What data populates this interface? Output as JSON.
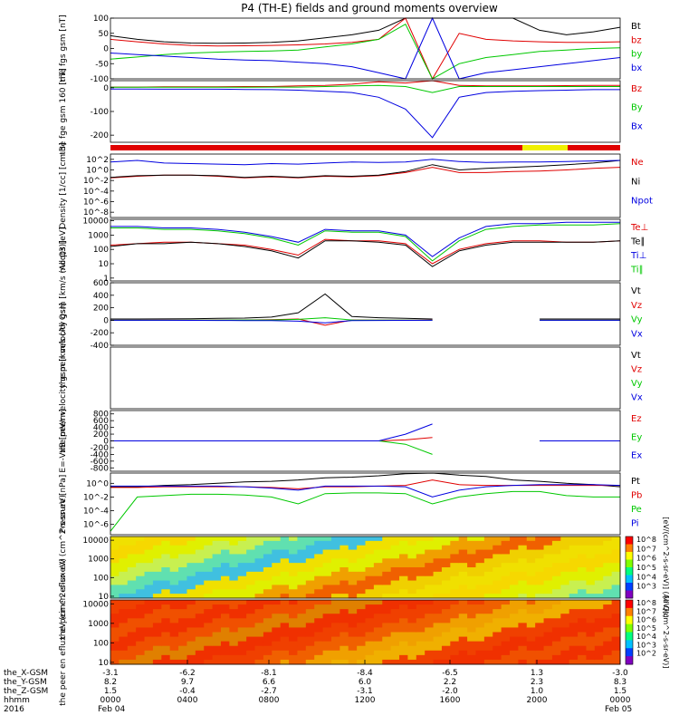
{
  "title": "P4 (TH-E) fields and ground moments overview",
  "colors": {
    "black": "#000000",
    "red": "#e00000",
    "green": "#00c800",
    "blue": "#0000e0",
    "yellow": "#f0f000"
  },
  "chart_data": [
    {
      "type": "line",
      "ylabel": "the fgs gsm [nT]",
      "yticks": [
        "100",
        "50",
        "0",
        "-50",
        "-100"
      ],
      "series": [
        {
          "name": "Bt",
          "color": "black",
          "values": [
            42,
            30,
            22,
            18,
            17,
            18,
            20,
            25,
            35,
            45,
            60,
            100,
            100,
            100,
            100,
            100,
            60,
            45,
            55,
            70
          ]
        },
        {
          "name": "bz",
          "color": "red",
          "values": [
            30,
            22,
            15,
            10,
            8,
            9,
            10,
            12,
            15,
            20,
            30,
            100,
            -100,
            50,
            30,
            25,
            22,
            20,
            20,
            22
          ]
        },
        {
          "name": "by",
          "color": "green",
          "values": [
            -35,
            -28,
            -20,
            -15,
            -12,
            -10,
            -8,
            -5,
            5,
            15,
            30,
            80,
            -100,
            -50,
            -30,
            -20,
            -10,
            -5,
            0,
            2
          ]
        },
        {
          "name": "bx",
          "color": "blue",
          "values": [
            -15,
            -20,
            -25,
            -30,
            -35,
            -38,
            -40,
            -45,
            -50,
            -60,
            -80,
            -100,
            100,
            -100,
            -80,
            -70,
            -60,
            -50,
            -40,
            -30
          ]
        }
      ]
    },
    {
      "type": "line",
      "ylabel": "the fge gsm 160 [nT]",
      "yticks": [
        "0",
        "-100",
        "-200"
      ],
      "series": [
        {
          "name": "Bz",
          "color": "red",
          "values": [
            3,
            3,
            4,
            4,
            4,
            5,
            5,
            8,
            10,
            15,
            25,
            20,
            30,
            10,
            8,
            8,
            8,
            9,
            10,
            10
          ]
        },
        {
          "name": "By",
          "color": "green",
          "values": [
            2,
            2,
            2,
            2,
            2,
            2,
            3,
            3,
            5,
            8,
            10,
            5,
            -20,
            5,
            5,
            5,
            5,
            5,
            5,
            5
          ]
        },
        {
          "name": "Bx",
          "color": "blue",
          "values": [
            -5,
            -5,
            -6,
            -6,
            -6,
            -7,
            -8,
            -10,
            -15,
            -20,
            -40,
            -90,
            -210,
            -40,
            -20,
            -15,
            -12,
            -10,
            -8,
            -8
          ]
        }
      ]
    },
    {
      "type": "line",
      "ylabel": "Density [1/cc] [cm-3]",
      "yscale": "log",
      "yticks": [
        "10^2",
        "10^0",
        "10^-2",
        "10^-4",
        "10^-6",
        "10^-8"
      ],
      "series": [
        {
          "name": "Ne",
          "color": "red",
          "values": [
            -1.5,
            -1.2,
            -1,
            -1,
            -1.2,
            -1.5,
            -1.3,
            -1.5,
            -1.2,
            -1.3,
            -1.1,
            -0.5,
            0.5,
            -0.5,
            -0.5,
            -0.3,
            -0.2,
            0,
            0.3,
            0.5
          ]
        },
        {
          "name": "Ni",
          "color": "black",
          "values": [
            -1.4,
            -1.1,
            -1,
            -1,
            -1.1,
            -1.4,
            -1.2,
            -1.4,
            -1.1,
            -1.2,
            -1,
            -0.3,
            1,
            0,
            0.3,
            0.5,
            0.7,
            1,
            1.3,
            1.8
          ]
        },
        {
          "name": "Npot",
          "color": "blue",
          "values": [
            1.5,
            1.8,
            1.3,
            1.2,
            1.1,
            1,
            1.2,
            1.1,
            1.3,
            1.5,
            1.4,
            1.5,
            2,
            1.6,
            1.4,
            1.5,
            1.5,
            1.6,
            1.7,
            1.8
          ]
        }
      ]
    },
    {
      "type": "line",
      "ylabel": "moqt3 [eV]",
      "yscale": "log",
      "yticks": [
        "10000",
        "1000",
        "100",
        "10",
        "1"
      ],
      "series": [
        {
          "name": "Te⊥",
          "color": "red",
          "values": [
            2.3,
            2.4,
            2.5,
            2.5,
            2.4,
            2.3,
            2.0,
            1.6,
            2.7,
            2.6,
            2.6,
            2.4,
            1.0,
            2.0,
            2.4,
            2.6,
            2.6,
            2.5,
            2.5,
            2.6
          ]
        },
        {
          "name": "Te∥",
          "color": "black",
          "values": [
            2.2,
            2.4,
            2.4,
            2.5,
            2.4,
            2.2,
            1.9,
            1.4,
            2.6,
            2.6,
            2.5,
            2.3,
            0.8,
            1.9,
            2.3,
            2.5,
            2.5,
            2.5,
            2.5,
            2.6
          ]
        },
        {
          "name": "Ti⊥",
          "color": "blue",
          "values": [
            3.6,
            3.6,
            3.5,
            3.5,
            3.4,
            3.2,
            2.9,
            2.5,
            3.4,
            3.3,
            3.3,
            3.0,
            1.5,
            2.8,
            3.6,
            3.8,
            3.8,
            3.9,
            3.9,
            3.9
          ]
        },
        {
          "name": "Ti∥",
          "color": "green",
          "values": [
            3.5,
            3.5,
            3.4,
            3.4,
            3.3,
            3.1,
            2.8,
            2.3,
            3.3,
            3.2,
            3.2,
            2.9,
            1.2,
            2.6,
            3.4,
            3.6,
            3.7,
            3.7,
            3.7,
            3.8
          ]
        }
      ]
    },
    {
      "type": "line",
      "ylabel": "the peir velocity gsm [km/s (All Qs)]",
      "yticks": [
        "600",
        "400",
        "200",
        "0",
        "-200",
        "-400"
      ],
      "series": [
        {
          "name": "Vt",
          "color": "black",
          "values": [
            20,
            20,
            22,
            25,
            30,
            35,
            50,
            120,
            420,
            60,
            40,
            30,
            20,
            null,
            null,
            null,
            20,
            20,
            20,
            20
          ]
        },
        {
          "name": "Vz",
          "color": "red",
          "values": [
            0,
            0,
            2,
            3,
            5,
            5,
            10,
            20,
            -80,
            5,
            3,
            2,
            5,
            null,
            null,
            null,
            0,
            0,
            0,
            0
          ]
        },
        {
          "name": "Vy",
          "color": "green",
          "values": [
            0,
            0,
            0,
            2,
            3,
            5,
            5,
            15,
            40,
            5,
            3,
            2,
            0,
            null,
            null,
            null,
            0,
            0,
            0,
            0
          ]
        },
        {
          "name": "Vx",
          "color": "blue",
          "values": [
            0,
            0,
            0,
            -2,
            -3,
            -5,
            -5,
            -15,
            -40,
            -5,
            -3,
            -2,
            0,
            null,
            null,
            null,
            0,
            0,
            0,
            0
          ]
        }
      ]
    },
    {
      "type": "line",
      "ylabel": "the peer velocity gsm [km/s (All Qs)]",
      "yticks": [],
      "series": [
        {
          "name": "Vt",
          "color": "black",
          "values": []
        },
        {
          "name": "Vz",
          "color": "red",
          "values": []
        },
        {
          "name": "Vy",
          "color": "green",
          "values": []
        },
        {
          "name": "Vx",
          "color": "blue",
          "values": []
        }
      ]
    },
    {
      "type": "line",
      "ylabel": "E=-VxB [mV/m]",
      "yticks": [
        "800",
        "600",
        "400",
        "200",
        "0",
        "-200",
        "-400",
        "-600",
        "-800"
      ],
      "series": [
        {
          "name": "Ez",
          "color": "red",
          "values": [
            0,
            0,
            0,
            0,
            0,
            0,
            0,
            0,
            0,
            0,
            0,
            30,
            100,
            null,
            null,
            null,
            0,
            0,
            0,
            0
          ]
        },
        {
          "name": "Ey",
          "color": "green",
          "values": [
            0,
            0,
            0,
            0,
            0,
            0,
            0,
            0,
            0,
            0,
            0,
            -100,
            -400,
            null,
            null,
            null,
            0,
            0,
            0,
            0
          ]
        },
        {
          "name": "Ex",
          "color": "blue",
          "values": [
            0,
            0,
            0,
            0,
            0,
            0,
            0,
            0,
            0,
            0,
            0,
            200,
            500,
            null,
            null,
            null,
            0,
            0,
            0,
            0
          ]
        }
      ]
    },
    {
      "type": "line",
      "ylabel": "Pressure [nPa]",
      "yscale": "log",
      "yticks": [
        "10^0",
        "10^-2",
        "10^-4",
        "10^-6"
      ],
      "series": [
        {
          "name": "Pt",
          "color": "black",
          "values": [
            -0.5,
            -0.5,
            -0.3,
            -0.2,
            0,
            0.2,
            0.3,
            0.5,
            0.8,
            0.9,
            1.1,
            1.4,
            2,
            1.2,
            1,
            0.5,
            0.3,
            0,
            -0.2,
            -0.5
          ]
        },
        {
          "name": "Pb",
          "color": "red",
          "values": [
            -0.6,
            -0.6,
            -0.5,
            -0.5,
            -0.5,
            -0.5,
            -0.6,
            -0.8,
            -0.5,
            -0.5,
            -0.4,
            -0.3,
            0.5,
            -0.2,
            -0.3,
            -0.3,
            -0.3,
            -0.3,
            -0.3,
            -0.3
          ]
        },
        {
          "name": "Pe",
          "color": "green",
          "values": [
            -7,
            -2,
            -1.8,
            -1.6,
            -1.6,
            -1.7,
            -2,
            -3,
            -1.5,
            -1.4,
            -1.4,
            -1.5,
            -3,
            -2,
            -1.5,
            -1.2,
            -1.2,
            -1.8,
            -2,
            -2
          ]
        },
        {
          "name": "Pi",
          "color": "blue",
          "values": [
            -0.4,
            -0.4,
            -0.4,
            -0.4,
            -0.4,
            -0.5,
            -0.7,
            -1,
            -0.4,
            -0.4,
            -0.4,
            -0.5,
            -2,
            -1,
            -0.5,
            -0.3,
            -0.2,
            -0.2,
            -0.2,
            -0.3
          ]
        }
      ]
    },
    {
      "type": "heatmap",
      "ylabel": "the peir en eflux eV (cm^2-s-sr-eV)",
      "yscale": "log",
      "yticks": [
        "10000",
        "1000",
        "100",
        "10"
      ],
      "colorbar": {
        "label": "[eV/(cm^2-s-sr-eV)] (All Qs)",
        "ticks": [
          "10^8",
          "10^7",
          "10^6",
          "10^5",
          "10^4",
          "10^3"
        ]
      }
    },
    {
      "type": "heatmap",
      "ylabel": "the peer en eflux eV (cm^2-s-sr-eV)",
      "yscale": "log",
      "yticks": [
        "10000",
        "1000",
        "100",
        "10"
      ],
      "colorbar": {
        "label": "[eV/(cm^2-s-sr-eV)]",
        "ticks": [
          "10^8",
          "10^7",
          "10^6",
          "10^5",
          "10^4",
          "10^3",
          "10^2"
        ]
      }
    }
  ],
  "xaxis": {
    "rows": [
      {
        "label": "the_X-GSM",
        "values": [
          "-3.1",
          "-6.2",
          "-8.1",
          "-8.4",
          "-6.5",
          "1.3",
          "-3.0"
        ]
      },
      {
        "label": "the_Y-GSM",
        "values": [
          "8.2",
          "9.7",
          "6.6",
          "6.0",
          "2.2",
          "2.3",
          "8.3"
        ]
      },
      {
        "label": "the_Z-GSM",
        "values": [
          "1.5",
          "-0.4",
          "-2.7",
          "-3.1",
          "-2.0",
          "1.0",
          "1.5"
        ]
      },
      {
        "label": "hhmm",
        "values": [
          "0000",
          "0400",
          "0800",
          "1200",
          "1600",
          "2000",
          "0000"
        ]
      }
    ],
    "year": "2016",
    "dates": [
      "Feb 04",
      "Feb 05"
    ]
  }
}
